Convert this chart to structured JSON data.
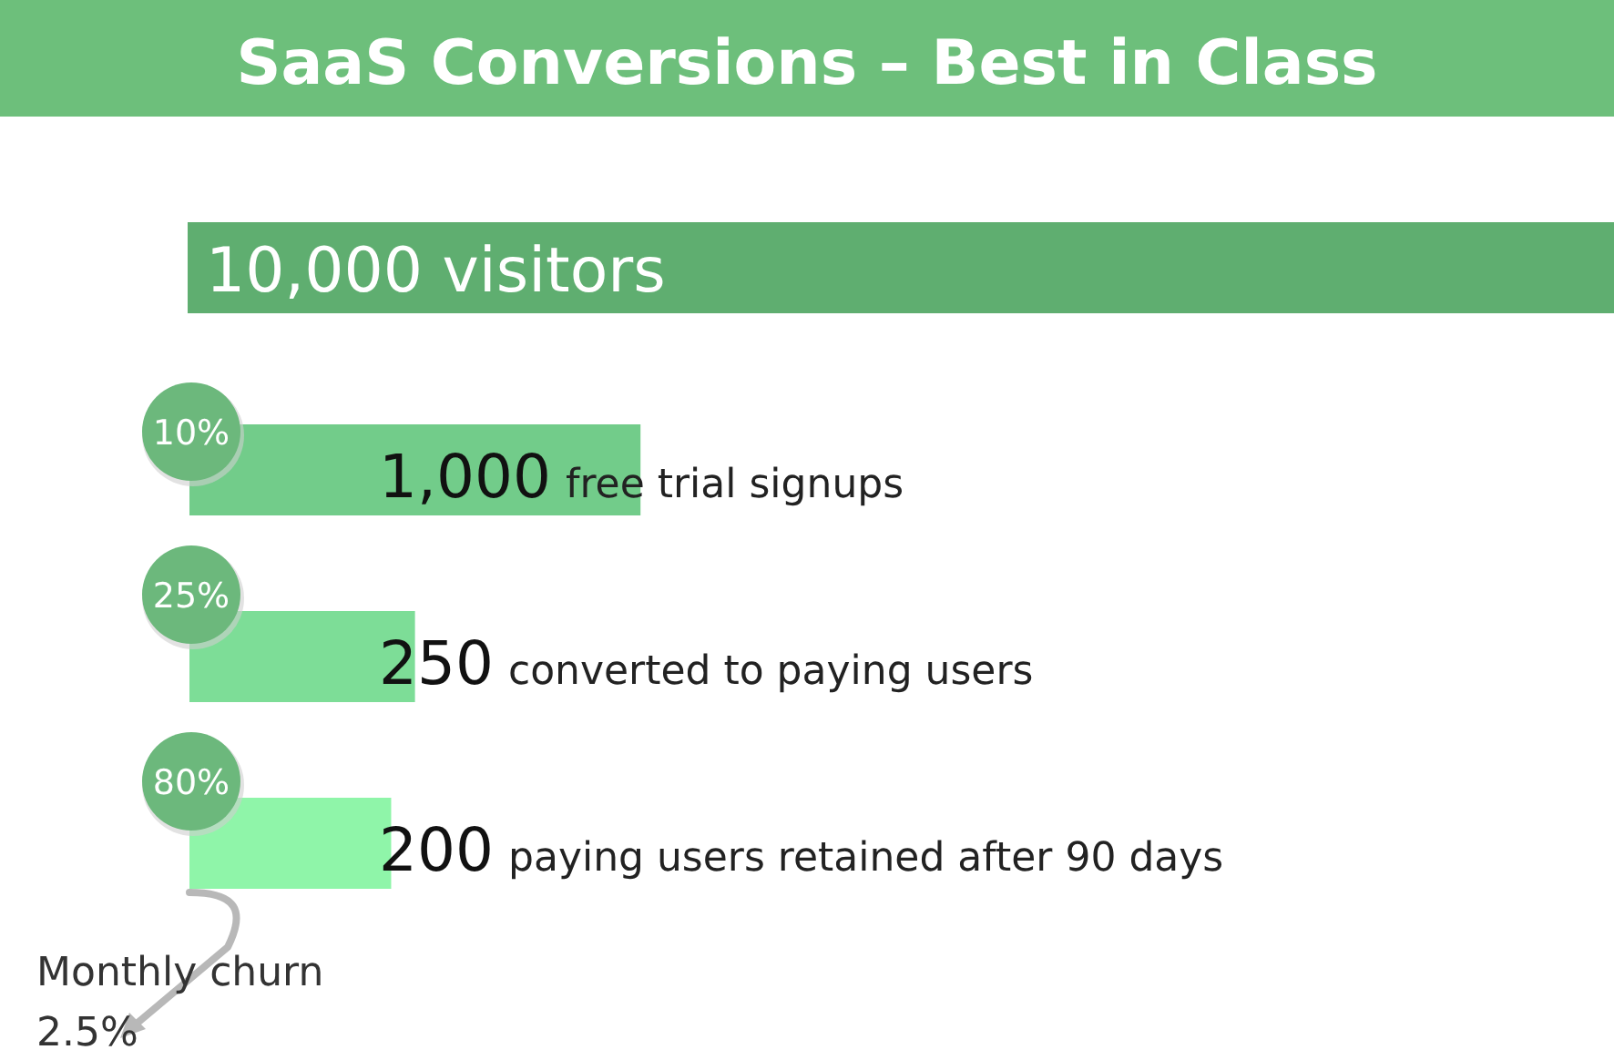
{
  "chart_data": {
    "type": "other",
    "title": "SaaS Conversions – Best in Class",
    "categories": [
      "visitors",
      "free trial signups",
      "converted to paying users",
      "paying users retained after 90 days"
    ],
    "values": [
      10000,
      1000,
      250,
      200
    ],
    "value_labels": [
      "10,000",
      "1,000",
      "250",
      "200"
    ],
    "colors": [
      "#5fae70",
      "#72cc8a",
      "#7ddd97",
      "#8ff5a9"
    ],
    "annotations": [
      "10%",
      "25%",
      "80%",
      "Monthly churn 2.5%"
    ]
  }
}
